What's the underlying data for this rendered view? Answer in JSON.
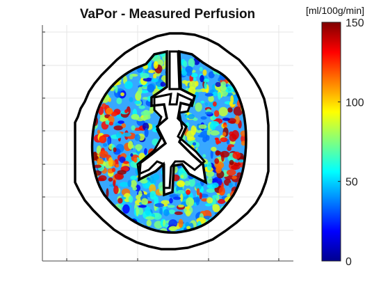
{
  "chart_data": {
    "type": "heatmap",
    "title": "VaPor - Measured Perfusion",
    "colorbar": {
      "label": "[ml/100g/min]",
      "colormap": "jet",
      "range": [
        0,
        150
      ],
      "ticks": [
        0,
        50,
        100,
        150
      ],
      "tick_labels": [
        "0",
        "50",
        "100",
        "150"
      ]
    },
    "grid": true,
    "axis_tick_labels_shown": false
  }
}
